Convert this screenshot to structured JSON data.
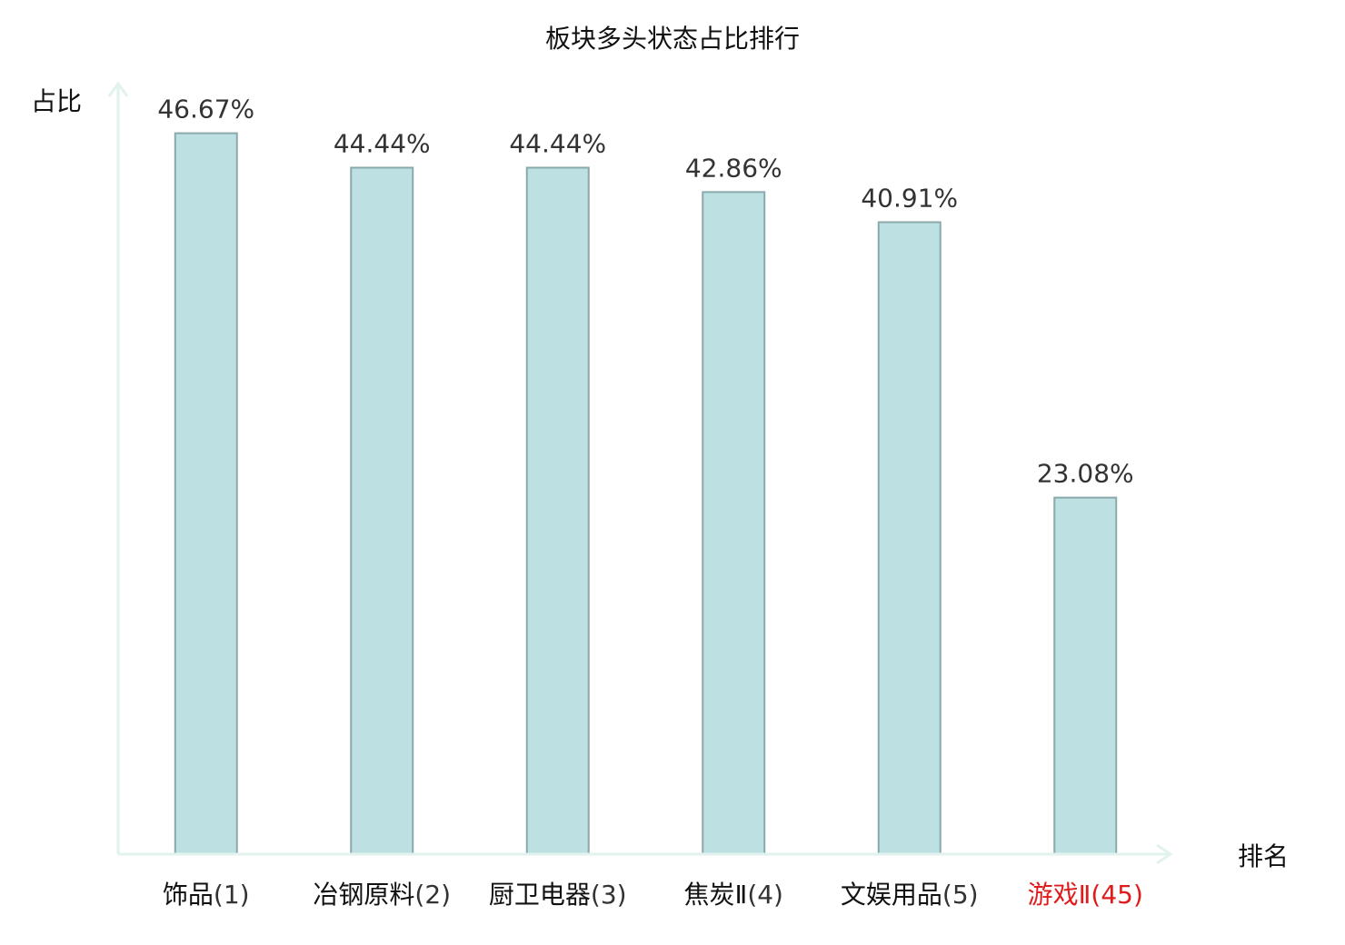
{
  "chart_data": {
    "type": "bar",
    "title": "板块多头状态占比排行",
    "xlabel": "排名",
    "ylabel": "占比",
    "categories": [
      {
        "name": "饰品",
        "rank": "(1)"
      },
      {
        "name": "冶钢原料",
        "rank": "(2)"
      },
      {
        "name": "厨卫电器",
        "rank": "(3)"
      },
      {
        "name": "焦炭Ⅱ",
        "rank": "(4)"
      },
      {
        "name": "文娱用品",
        "rank": "(5)"
      },
      {
        "name": "游戏Ⅱ",
        "rank": "(45)",
        "highlight": true
      }
    ],
    "values": [
      46.67,
      44.44,
      44.44,
      42.86,
      40.91,
      23.08
    ],
    "value_labels": [
      "46.67%",
      "44.44%",
      "44.44%",
      "42.86%",
      "40.91%",
      "23.08%"
    ],
    "ylim": [
      0,
      50
    ],
    "grid": false,
    "legend": "none",
    "colors": {
      "bar_fill": "#bde0e3",
      "bar_stroke": "#8aa9ab",
      "axis": "#e1f2ef",
      "category_text": "#111111",
      "rank_text": "#333333",
      "highlight_text": "#e01b1b"
    }
  }
}
